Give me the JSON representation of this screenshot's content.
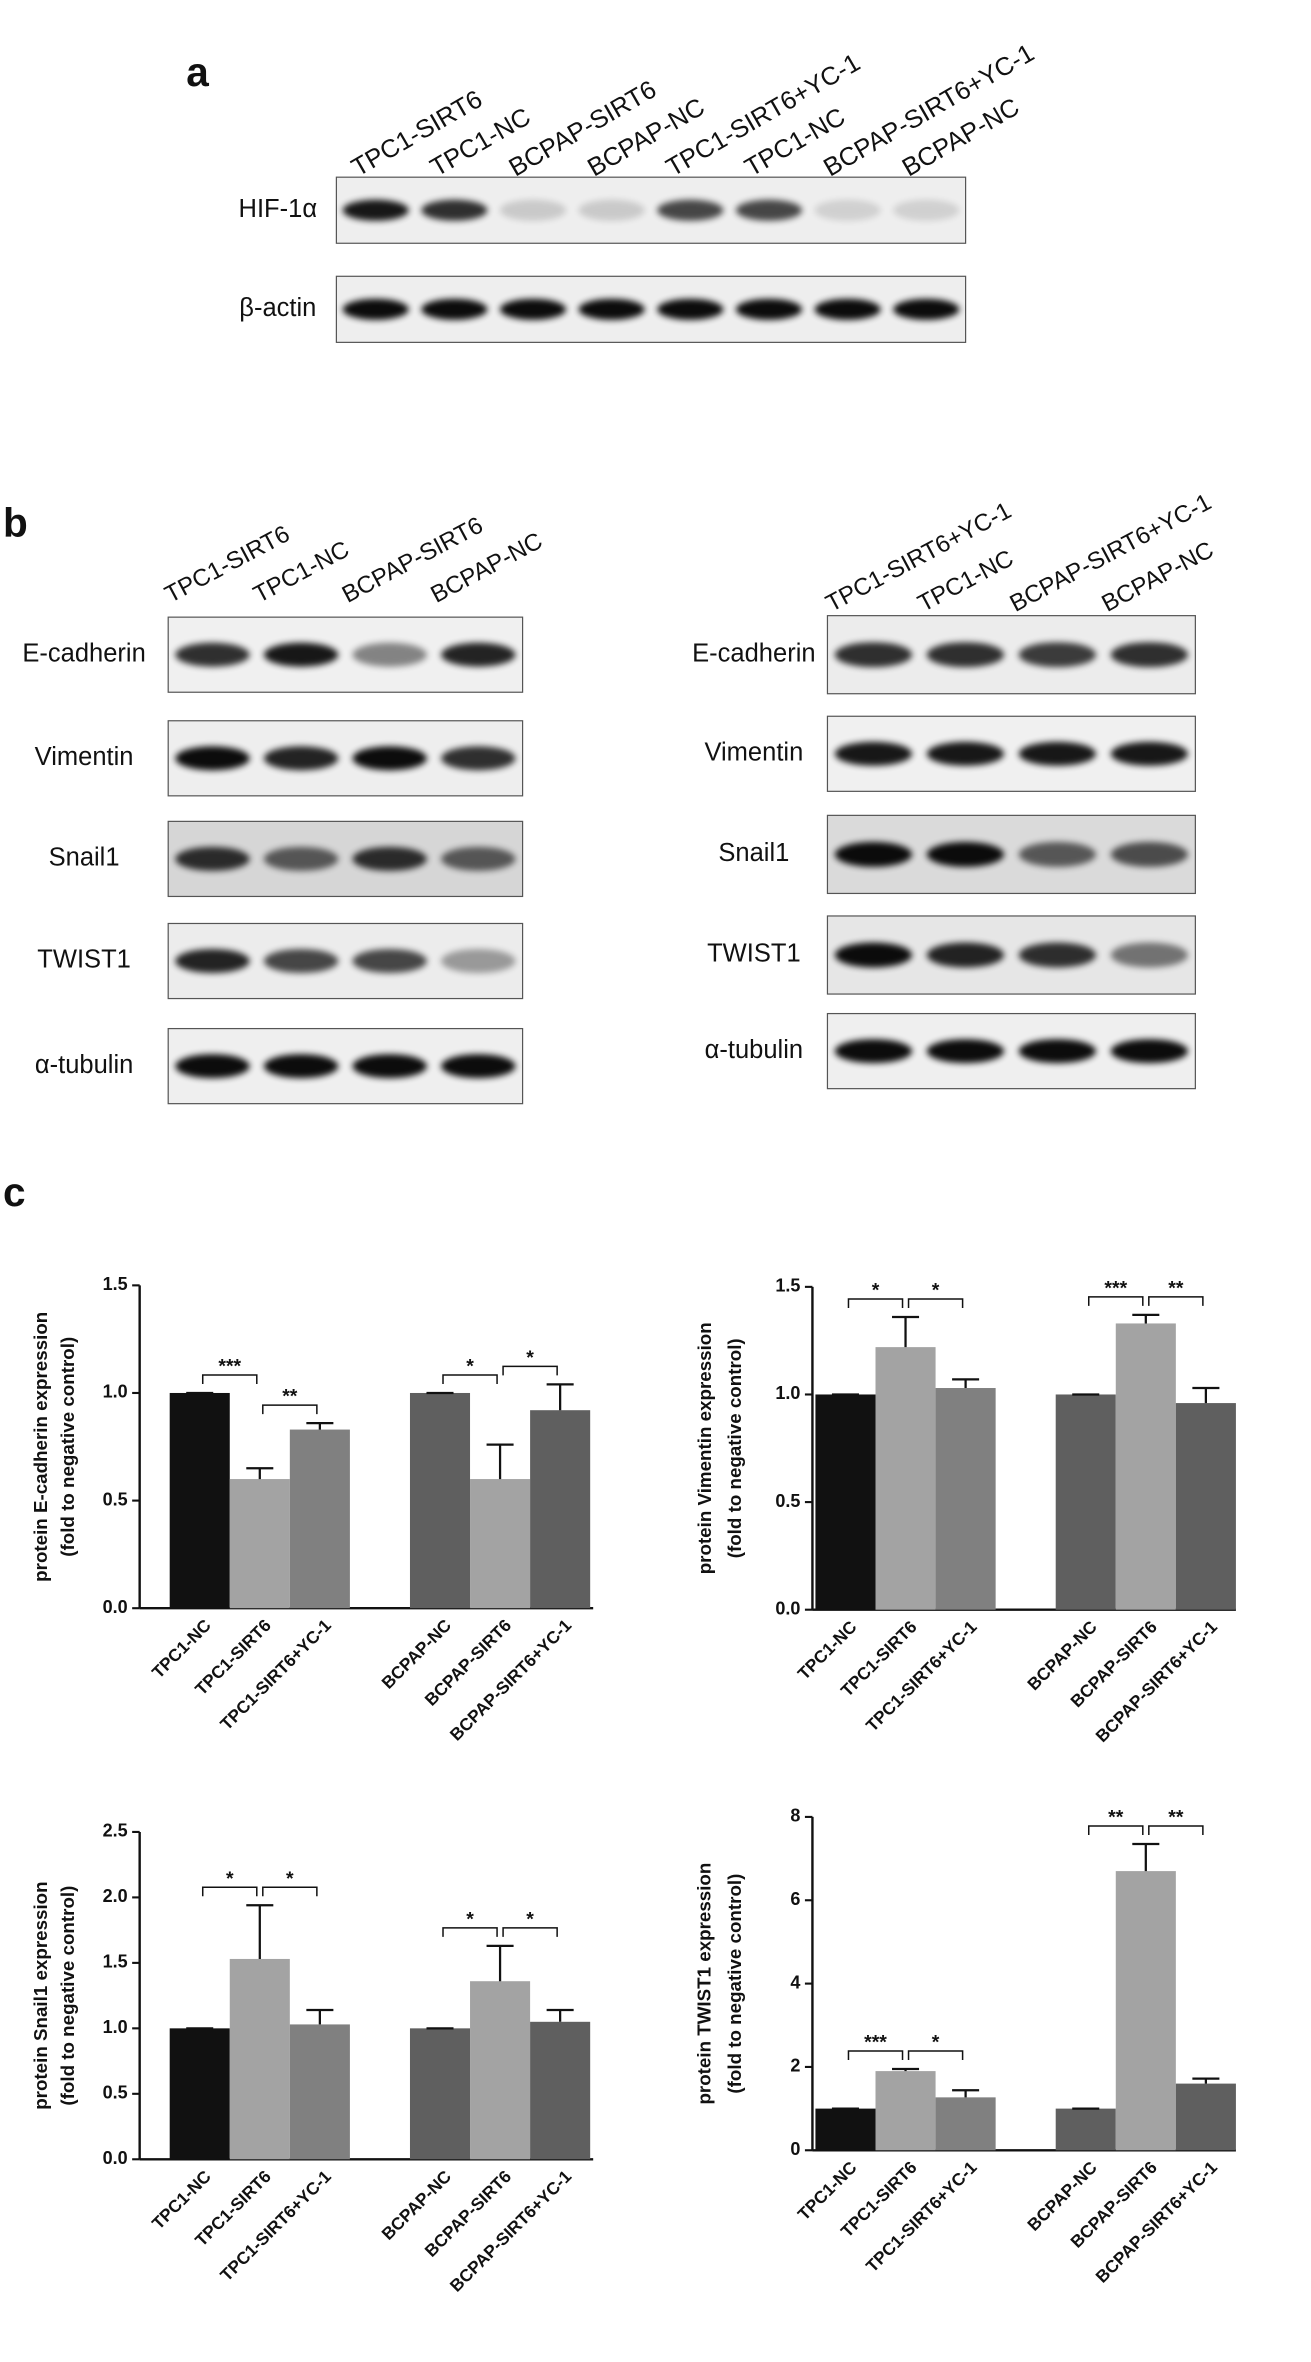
{
  "panel_labels": [
    "a",
    "b",
    "c"
  ],
  "blots": [
    {
      "lanes": [
        "TPC1-SIRT6",
        "TPC1-NC",
        "BCPAP-SIRT6",
        "BCPAP-NC",
        "TPC1-SIRT6+YC-1",
        "TPC1-NC",
        "BCPAP-SIRT6+YC-1",
        "BCPAP-NC"
      ],
      "rows": [
        "HIF-1α",
        "β-actin"
      ]
    },
    {
      "lanes": [
        "TPC1-SIRT6",
        "TPC1-NC",
        "BCPAP-SIRT6",
        "BCPAP-NC"
      ],
      "rows": [
        "E-cadherin",
        "Vimentin",
        "Snail1",
        "TWIST1",
        "α-tubulin"
      ]
    },
    {
      "lanes": [
        "TPC1-SIRT6+YC-1",
        "TPC1-NC",
        "BCPAP-SIRT6+YC-1",
        "BCPAP-NC"
      ],
      "rows": [
        "E-cadherin",
        "Vimentin",
        "Snail1",
        "TWIST1",
        "α-tubulin"
      ]
    }
  ],
  "chart_data": [
    {
      "type": "bar",
      "y_label": [
        "protein E-cadherin expression",
        "(fold to negative control)"
      ],
      "categories": [
        "TPC1-NC",
        "TPC1-SIRT6",
        "TPC1-SIRT6+YC-1",
        "BCPAP-NC",
        "BCPAP-SIRT6",
        "BCPAP-SIRT6+YC-1"
      ],
      "values": [
        1.0,
        0.6,
        0.83,
        1.0,
        0.6,
        0.92
      ],
      "errors": [
        0,
        0.05,
        0.03,
        0,
        0.16,
        0.12
      ],
      "colors": [
        "#111111",
        "#a3a3a3",
        "#808080",
        "#5f5f5f",
        "#a3a3a3",
        "#5f5f5f"
      ],
      "ylim": [
        0,
        1.5
      ],
      "yticks": [
        {
          "value": 0,
          "label": "0.0"
        },
        0.5,
        {
          "value": 1,
          "label": "1.0"
        },
        1.5
      ],
      "significance": [
        {
          "pair": [
            0,
            1
          ],
          "label": "***"
        },
        {
          "pair": [
            1,
            2
          ],
          "label": "**"
        },
        {
          "pair": [
            3,
            4
          ],
          "label": "*"
        },
        {
          "pair": [
            4,
            5
          ],
          "label": "*"
        }
      ]
    },
    {
      "type": "bar",
      "y_label": [
        "protein Vimentin expression",
        "(fold to negative control)"
      ],
      "categories": [
        "TPC1-NC",
        "TPC1-SIRT6",
        "TPC1-SIRT6+YC-1",
        "BCPAP-NC",
        "BCPAP-SIRT6",
        "BCPAP-SIRT6+YC-1"
      ],
      "values": [
        1.0,
        1.22,
        1.03,
        1.0,
        1.33,
        0.96
      ],
      "errors": [
        0,
        0.14,
        0.04,
        0,
        0.04,
        0.07
      ],
      "colors": [
        "#111111",
        "#a3a3a3",
        "#808080",
        "#5f5f5f",
        "#a3a3a3",
        "#5f5f5f"
      ],
      "ylim": [
        0,
        1.5
      ],
      "yticks": [
        {
          "value": 0,
          "label": "0.0"
        },
        0.5,
        {
          "value": 1,
          "label": "1.0"
        },
        1.5
      ],
      "significance": [
        {
          "pair": [
            0,
            1
          ],
          "label": "*"
        },
        {
          "pair": [
            1,
            2
          ],
          "label": "*"
        },
        {
          "pair": [
            3,
            4
          ],
          "label": "***"
        },
        {
          "pair": [
            4,
            5
          ],
          "label": "**"
        }
      ]
    },
    {
      "type": "bar",
      "y_label": [
        "protein Snail1 expression",
        "(fold to negative control)"
      ],
      "categories": [
        "TPC1-NC",
        "TPC1-SIRT6",
        "TPC1-SIRT6+YC-1",
        "BCPAP-NC",
        "BCPAP-SIRT6",
        "BCPAP-SIRT6+YC-1"
      ],
      "values": [
        1.0,
        1.53,
        1.03,
        1.0,
        1.36,
        1.05
      ],
      "errors": [
        0,
        0.41,
        0.11,
        0,
        0.27,
        0.09
      ],
      "colors": [
        "#111111",
        "#a3a3a3",
        "#808080",
        "#5f5f5f",
        "#a3a3a3",
        "#5f5f5f"
      ],
      "ylim": [
        0,
        2.5
      ],
      "yticks": [
        {
          "value": 0,
          "label": "0.0"
        },
        0.5,
        {
          "value": 1,
          "label": "1.0"
        },
        1.5,
        {
          "value": 2,
          "label": "2.0"
        },
        2.5
      ],
      "significance": [
        {
          "pair": [
            0,
            1
          ],
          "label": "*"
        },
        {
          "pair": [
            1,
            2
          ],
          "label": "*"
        },
        {
          "pair": [
            3,
            4
          ],
          "label": "*"
        },
        {
          "pair": [
            4,
            5
          ],
          "label": "*"
        }
      ]
    },
    {
      "type": "bar",
      "y_label": [
        "protein TWIST1 expression",
        "(fold to negative control)"
      ],
      "categories": [
        "TPC1-NC",
        "TPC1-SIRT6",
        "TPC1-SIRT6+YC-1",
        "BCPAP-NC",
        "BCPAP-SIRT6",
        "BCPAP-SIRT6+YC-1"
      ],
      "values": [
        1.0,
        1.9,
        1.27,
        1.0,
        6.7,
        1.6
      ],
      "errors": [
        0,
        0.05,
        0.17,
        0,
        0.65,
        0.12
      ],
      "colors": [
        "#111111",
        "#a3a3a3",
        "#808080",
        "#5f5f5f",
        "#a3a3a3",
        "#5f5f5f"
      ],
      "ylim": [
        0,
        8
      ],
      "yticks": [
        0,
        2,
        4,
        6,
        8
      ],
      "significance": [
        {
          "pair": [
            0,
            1
          ],
          "label": "***"
        },
        {
          "pair": [
            1,
            2
          ],
          "label": "*"
        },
        {
          "pair": [
            3,
            4
          ],
          "label": "**"
        },
        {
          "pair": [
            4,
            5
          ],
          "label": "**"
        }
      ]
    }
  ]
}
